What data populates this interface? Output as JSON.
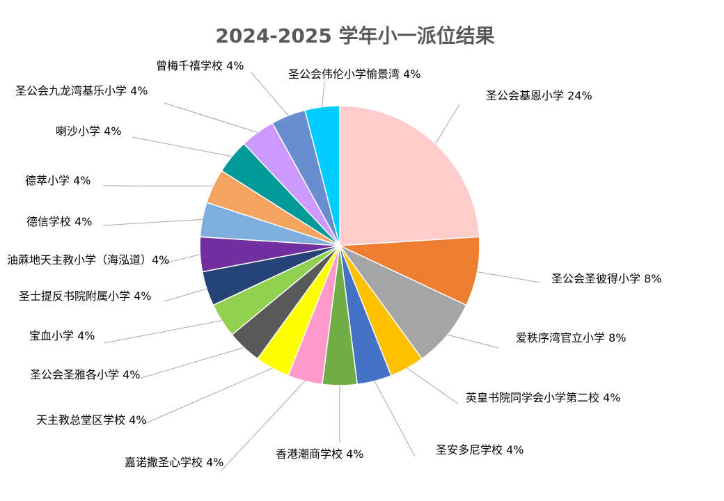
{
  "chart_data": {
    "type": "pie",
    "title": "2024-2025 学年小一派位结果",
    "slices": [
      {
        "label": "圣公会基恩小学 24%",
        "value": 24,
        "color": "#FFCCCC"
      },
      {
        "label": "圣公会圣彼得小学 8%",
        "value": 8,
        "color": "#ED7D31"
      },
      {
        "label": "爱秩序湾官立小学 8%",
        "value": 8,
        "color": "#A5A5A5"
      },
      {
        "label": "英皇书院同学会小学第二校 4%",
        "value": 4,
        "color": "#FFC000"
      },
      {
        "label": "圣安多尼学校 4%",
        "value": 4,
        "color": "#4472C4"
      },
      {
        "label": "香港潮商学校 4%",
        "value": 4,
        "color": "#70AD47"
      },
      {
        "label": "嘉诺撒圣心学校 4%",
        "value": 4,
        "color": "#FF99CC"
      },
      {
        "label": "天主教总堂区学校 4%",
        "value": 4,
        "color": "#FFFF00"
      },
      {
        "label": "圣公会圣雅各小学 4%",
        "value": 4,
        "color": "#595959"
      },
      {
        "label": "宝血小学 4%",
        "value": 4,
        "color": "#92D050"
      },
      {
        "label": "圣士提反书院附属小学 4%",
        "value": 4,
        "color": "#264478"
      },
      {
        "label": "油蔴地天主教小学（海泓道）4%",
        "value": 4,
        "color": "#7030A0"
      },
      {
        "label": "德信学校 4%",
        "value": 4,
        "color": "#7FAEDE"
      },
      {
        "label": "德萃小学 4%",
        "value": 4,
        "color": "#F4A460"
      },
      {
        "label": "喇沙小学 4%",
        "value": 4,
        "color": "#009999"
      },
      {
        "label": "圣公会九龙湾基乐小学 4%",
        "value": 4,
        "color": "#CC99FF"
      },
      {
        "label": "曾梅千禧学校 4%",
        "value": 4,
        "color": "#698ED0"
      },
      {
        "label": "圣公会伟伦小学愉景湾 4%",
        "value": 4,
        "color": "#00CCFF"
      }
    ],
    "start_angle": "12 o'clock",
    "direction": "clockwise",
    "legend": "none"
  }
}
